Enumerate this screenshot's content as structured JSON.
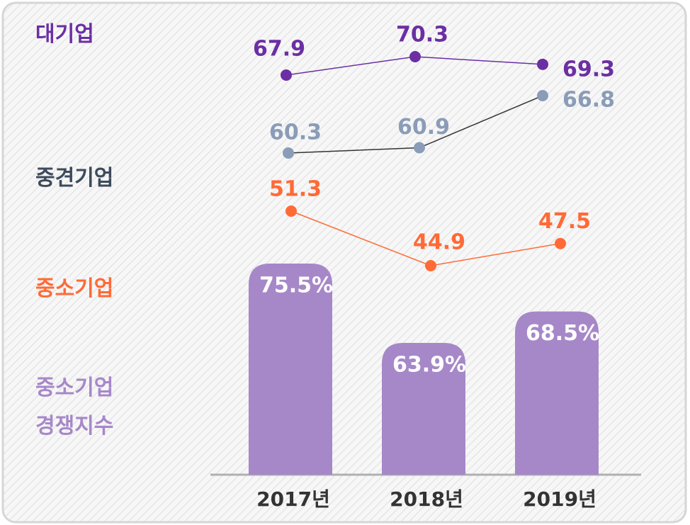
{
  "chart_data": {
    "type": "combo",
    "categories": [
      "2017년",
      "2018년",
      "2019년"
    ],
    "series": [
      {
        "name": "대기업",
        "type": "line",
        "color": "#6b2fa3",
        "line_color": "#6b2fa3",
        "values": [
          67.9,
          70.3,
          69.3
        ]
      },
      {
        "name": "중견기업",
        "type": "line",
        "color": "#8a9cb8",
        "line_color": "#333333",
        "values": [
          60.3,
          60.9,
          66.8
        ]
      },
      {
        "name": "중소기업",
        "type": "line",
        "color": "#ff6a36",
        "line_color": "#ff6a36",
        "values": [
          51.3,
          44.9,
          47.5
        ]
      },
      {
        "name": "중소기업\n경쟁지수",
        "type": "bar",
        "color": "#a688c8",
        "values": [
          75.5,
          63.9,
          68.5
        ],
        "value_labels": [
          "75.5%",
          "63.9%",
          "68.5%"
        ]
      }
    ]
  }
}
